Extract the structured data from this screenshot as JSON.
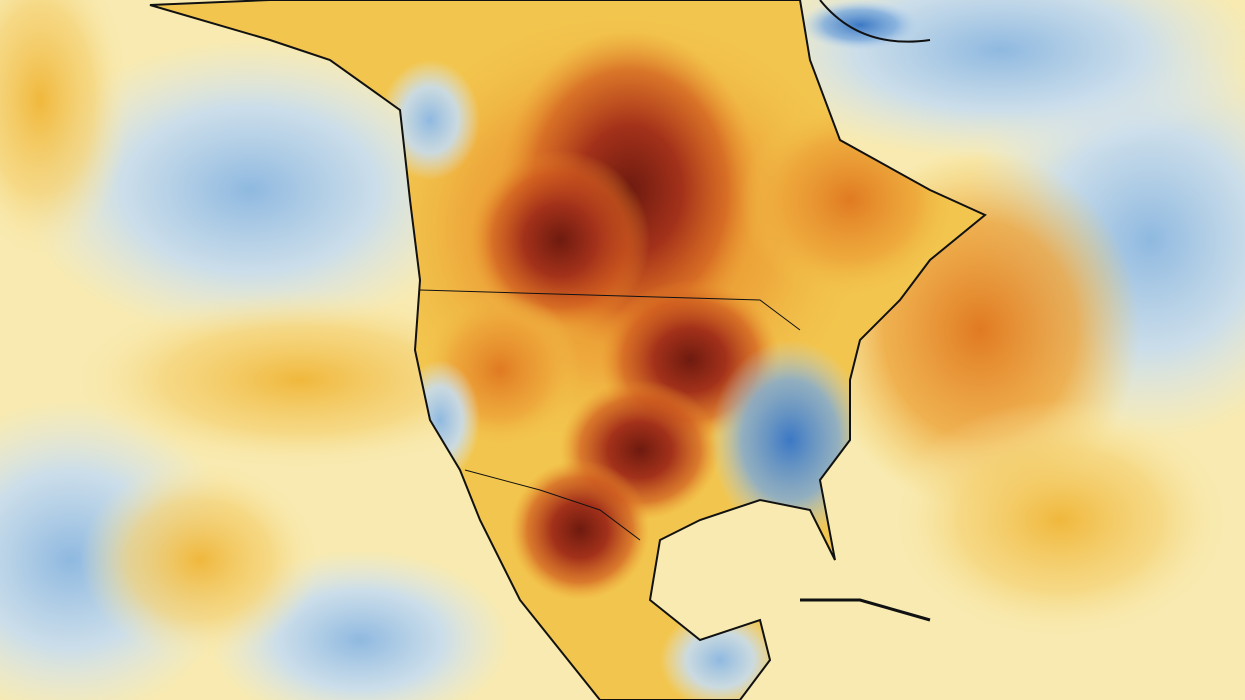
{
  "colors": {
    "warm_pale": "#f8eab0",
    "warm_yellow": "#f2c64e",
    "warm_orange": "#e9902a",
    "hot_red": "#c0441a",
    "hot_dark": "#6e1a0f",
    "cool_pale": "#dbe9f5",
    "cool_blue": "#8fb9e0",
    "cool_deep": "#3b78c4",
    "coastline": "#111111"
  }
}
